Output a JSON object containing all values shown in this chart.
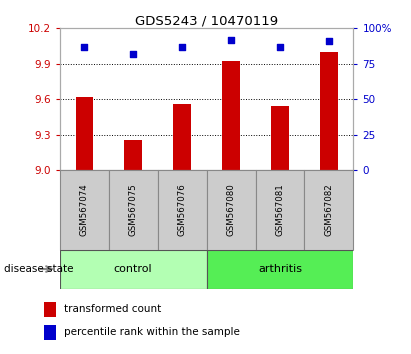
{
  "title": "GDS5243 / 10470119",
  "samples": [
    "GSM567074",
    "GSM567075",
    "GSM567076",
    "GSM567080",
    "GSM567081",
    "GSM567082"
  ],
  "transformed_count": [
    9.62,
    9.25,
    9.56,
    9.92,
    9.54,
    10.0
  ],
  "percentile_rank": [
    87,
    82,
    87,
    92,
    87,
    91
  ],
  "groups": {
    "control": [
      0,
      1,
      2
    ],
    "arthritis": [
      3,
      4,
      5
    ]
  },
  "ylim_left": [
    9.0,
    10.2
  ],
  "ylim_right": [
    0,
    100
  ],
  "yticks_left": [
    9.0,
    9.3,
    9.6,
    9.9,
    10.2
  ],
  "yticks_right": [
    0,
    25,
    50,
    75,
    100
  ],
  "bar_color": "#cc0000",
  "scatter_color": "#0000cc",
  "control_color": "#b3ffb3",
  "arthritis_color": "#55ee55",
  "label_bg_color": "#cccccc",
  "background_color": "#ffffff",
  "grid_color": "#000000",
  "legend_bar_label": "transformed count",
  "legend_scatter_label": "percentile rank within the sample",
  "group_label": "disease state",
  "bar_width": 0.35
}
